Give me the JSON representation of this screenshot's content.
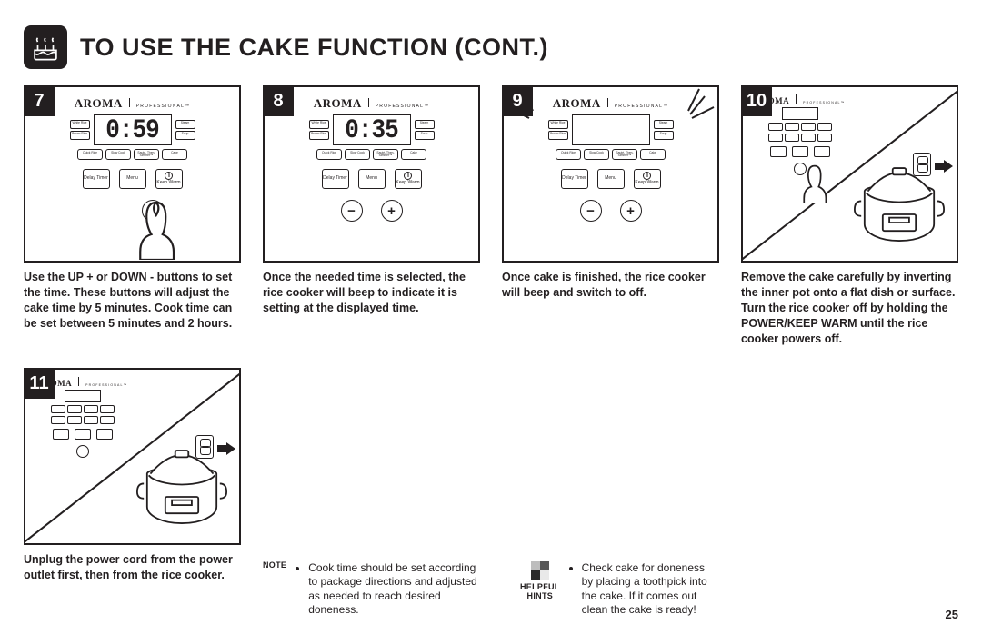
{
  "title": "TO USE THE CAKE FUNCTION (CONT.)",
  "brand": {
    "name": "AROMA",
    "suffix": "Professional™"
  },
  "modes": {
    "left_top": "White\nRice",
    "left_bot": "Brown\nRice",
    "right_top": "Steam",
    "right_bot": "Soup"
  },
  "row2": {
    "a": "Quick\nRice",
    "b": "Slow\nCook",
    "c": "Sauté-\nThen-\nSimmer™",
    "d": "Cake"
  },
  "row3": {
    "delay": "Delay\nTimer",
    "menu": "Menu",
    "keep": "Keep\nWarm"
  },
  "steps": [
    {
      "num": "7",
      "display": "0:59",
      "show_plus": true,
      "show_minus": false,
      "thumb": "right",
      "caption": "Use the UP + or DOWN - buttons to set the time. These buttons will adjust the cake time by 5 minutes. Cook time can be set between 5 minutes and 2 hours."
    },
    {
      "num": "8",
      "display": "0:35",
      "show_plus": true,
      "show_minus": true,
      "thumb": "none",
      "caption": "Once the needed time is selected, the rice cooker will beep to indicate it is setting at the displayed time."
    },
    {
      "num": "9",
      "display": "",
      "show_plus": true,
      "show_minus": true,
      "thumb": "none",
      "flash": true,
      "caption": "Once cake is finished, the rice cooker will beep and switch to off."
    },
    {
      "num": "10",
      "split": true,
      "caption": "Remove the cake carefully by inverting the inner pot onto a flat dish or surface. Turn the rice cooker off by holding the POWER/KEEP WARM until the rice cooker powers off."
    },
    {
      "num": "11",
      "split": true,
      "caption": "Unplug the power cord from the power outlet first, then from the rice cooker."
    }
  ],
  "note_label": "NOTE",
  "note_text": "Cook time should be set according to package directions and adjusted as needed to reach desired doneness.",
  "hints_label": "HELPFUL\nHINTS",
  "hints_text": "Check cake for doneness by placing a toothpick into the cake. If it comes out clean the cake is ready!",
  "page": "25"
}
